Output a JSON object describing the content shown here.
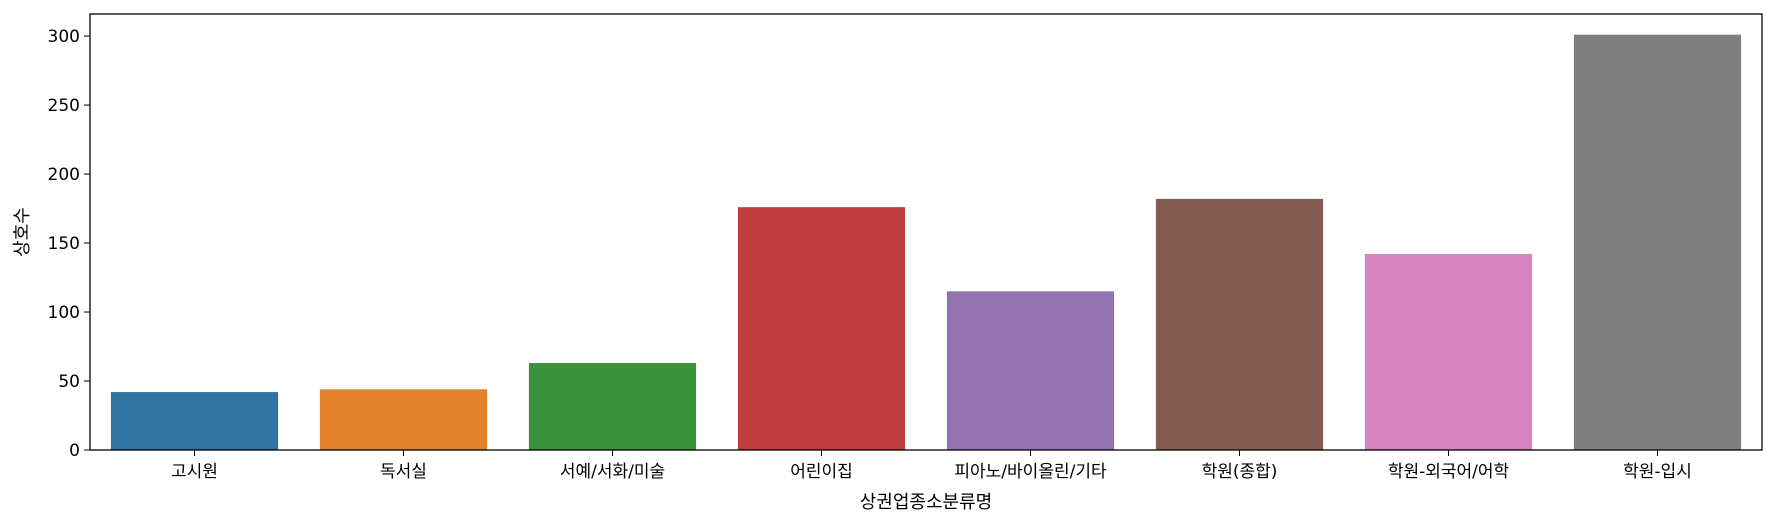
{
  "chart_data": {
    "type": "bar",
    "title": "",
    "xlabel": "상권업종소분류명",
    "ylabel": "상호수",
    "categories": [
      "고시원",
      "독서실",
      "서예/서화/미술",
      "어린이집",
      "피아노/바이올린/기타",
      "학원(종합)",
      "학원-외국어/어학",
      "학원-입시"
    ],
    "values": [
      42,
      44,
      63,
      176,
      115,
      182,
      142,
      301
    ],
    "colors": [
      "#3274a1",
      "#e1812c",
      "#3a923a",
      "#c03d3e",
      "#9372b2",
      "#845b53",
      "#d684bd",
      "#7f7f7f"
    ],
    "yticks": [
      0,
      50,
      100,
      150,
      200,
      250,
      300
    ],
    "ylim": [
      0,
      316
    ],
    "grid": false,
    "legend": "none"
  }
}
